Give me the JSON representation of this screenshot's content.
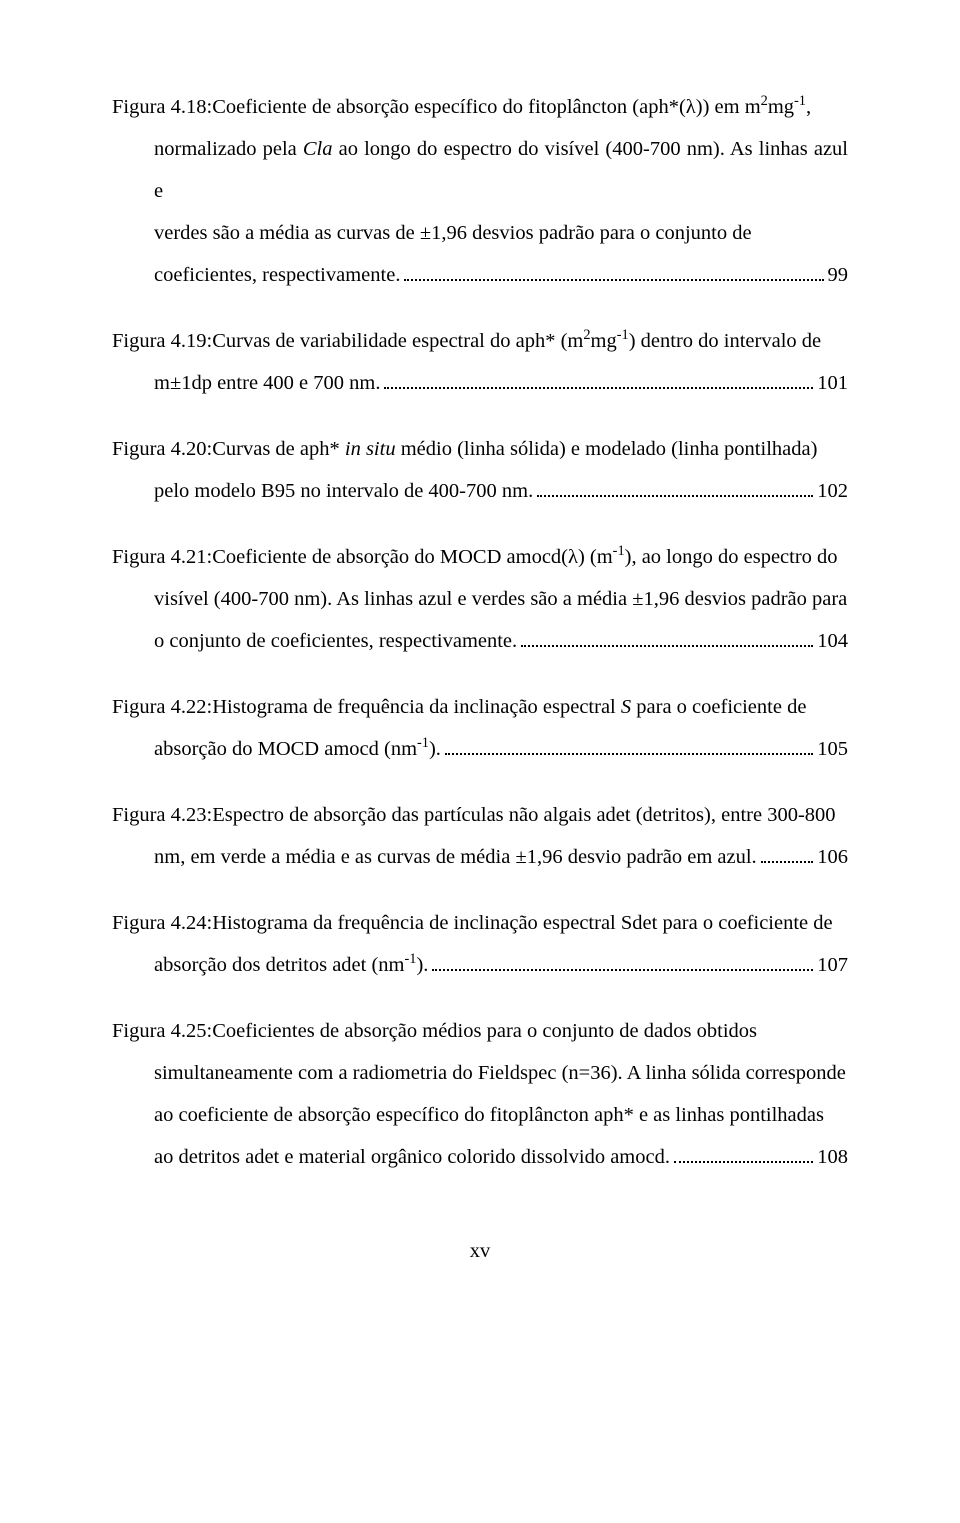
{
  "entries": [
    {
      "label": "Figura 4.18: ",
      "first_line": "Coeficiente de absorção específico do fitoplâncton (aph*(λ)) em m<sup>2</sup>mg<sup>-1</sup>,",
      "mid_lines": [
        "normalizado pela <i>Cla</i> ao longo do espectro do visível (400-700 nm). As linhas azul e",
        "verdes são a média as curvas de ±1,96 desvios padrão para o conjunto de"
      ],
      "last_line": "coeficientes, respectivamente.",
      "page": "99"
    },
    {
      "label": "Figura 4.19: ",
      "first_line": "Curvas de variabilidade espectral do aph* (m<sup>2</sup>mg<sup>-1</sup>) dentro do intervalo de",
      "mid_lines": [],
      "last_line": "m±1dp entre 400 e 700 nm.",
      "page": "101"
    },
    {
      "label": "Figura 4.20: ",
      "first_line": "Curvas de aph* <i>in situ</i> médio (linha sólida) e modelado (linha pontilhada)",
      "mid_lines": [],
      "last_line": "pelo modelo B95 no intervalo de 400-700 nm.",
      "page": "102"
    },
    {
      "label": "Figura 4.21: ",
      "first_line": "Coeficiente de absorção do MOCD amocd(λ) (m<sup>-1</sup>), ao longo do espectro do",
      "mid_lines": [
        "visível (400-700 nm). As linhas azul e verdes são a média ±1,96 desvios padrão para"
      ],
      "last_line": "o conjunto de coeficientes, respectivamente.",
      "page": "104"
    },
    {
      "label": "Figura 4.22: ",
      "first_line": "Histograma de frequência da inclinação espectral <i>S</i> para o coeficiente de",
      "mid_lines": [],
      "last_line": "absorção do MOCD amocd (nm<sup>-1</sup>).",
      "page": "105"
    },
    {
      "label": "Figura 4.23: ",
      "first_line": "Espectro de absorção das partículas não algais adet (detritos), entre 300-800",
      "mid_lines": [],
      "last_line": "nm, em verde a média e as curvas de média ±1,96 desvio padrão em azul.",
      "page": "106"
    },
    {
      "label": "Figura 4.24: ",
      "first_line": "Histograma da frequência de inclinação espectral Sdet para o coeficiente de",
      "mid_lines": [],
      "last_line": "absorção dos detritos adet (nm<sup>-1</sup>).",
      "page": "107"
    },
    {
      "label": "Figura 4.25: ",
      "first_line": "Coeficientes de absorção médios para o conjunto de dados obtidos",
      "mid_lines": [
        "simultaneamente com a radiometria do Fieldspec (n=36). A linha sólida corresponde",
        "ao coeficiente de absorção específico do fitoplâncton aph*  e as linhas pontilhadas"
      ],
      "last_line": "ao detritos adet e material orgânico colorido dissolvido amocd.",
      "page": "108"
    }
  ],
  "footer": "xv"
}
